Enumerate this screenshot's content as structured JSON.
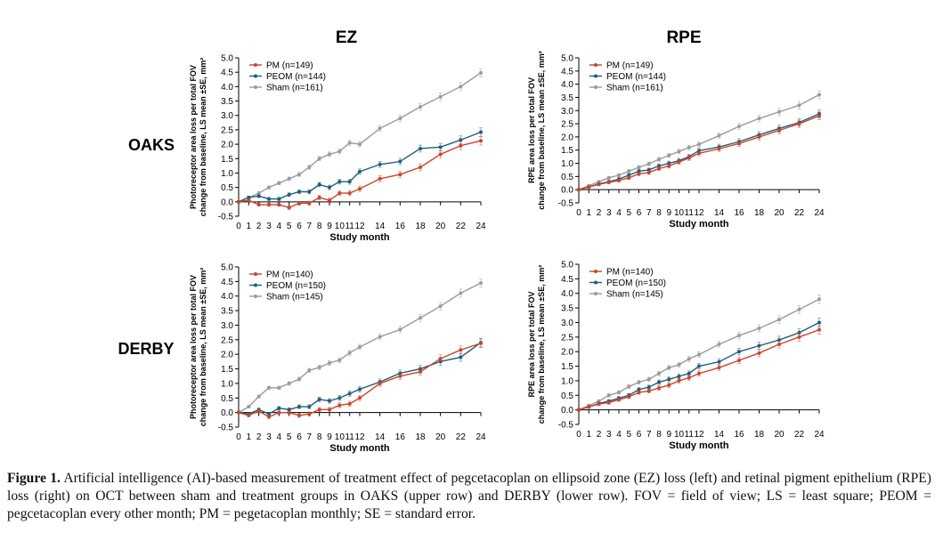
{
  "column_titles": {
    "left": "EZ",
    "right": "RPE"
  },
  "row_titles": {
    "top": "OAKS",
    "bottom": "DERBY"
  },
  "caption": {
    "label": "Figure 1.",
    "text": "Artificial intelligence (AI)-based measurement of treatment effect of pegcetacoplan on ellipsoid zone (EZ) loss (left) and retinal pigment epithelium (RPE) loss (right) on OCT between sham and treatment groups in OAKS (upper row) and DERBY (lower row). FOV = field of view; LS = least square; PEOM = pegcetacoplan every other month; PM = pegetacoplan monthly; SE = standard error."
  },
  "colors": {
    "PM": "#c8452b",
    "PEOM": "#1f5e7a",
    "Sham": "#9b9b9b"
  },
  "chart_data": [
    {
      "type": "line",
      "panel": "OAKS-EZ",
      "ylabel_line1": "Photoreceptor area loss per total FOV",
      "ylabel_line2": "change from baseline, LS mean ±SE, mm²",
      "xlabel": "Study month",
      "ylim": [
        -0.5,
        5.0
      ],
      "yticks": [
        "5.0",
        "4.5",
        "4.0",
        "3.5",
        "3.0",
        "2.5",
        "2.0",
        "1.5",
        "1.0",
        "0.5",
        "0.0",
        "-0.5"
      ],
      "xticks": [
        "0",
        "1",
        "2",
        "3",
        "4",
        "5",
        "6",
        "7",
        "8",
        "9",
        "10",
        "11",
        "12",
        "14",
        "16",
        "18",
        "20",
        "22",
        "24"
      ],
      "x": [
        0,
        1,
        2,
        3,
        4,
        5,
        6,
        7,
        8,
        9,
        10,
        11,
        12,
        14,
        16,
        18,
        20,
        22,
        24
      ],
      "legend_position": "top-left",
      "series": [
        {
          "name": "PM (n=149)",
          "key": "PM",
          "values": [
            0,
            0.05,
            -0.1,
            -0.1,
            -0.1,
            -0.2,
            -0.05,
            -0.05,
            0.15,
            0.05,
            0.3,
            0.3,
            0.45,
            0.8,
            0.95,
            1.2,
            1.65,
            1.95,
            2.12
          ]
        },
        {
          "name": "PEOM (n=144)",
          "key": "PEOM",
          "values": [
            0,
            0.15,
            0.2,
            0.1,
            0.1,
            0.25,
            0.35,
            0.35,
            0.6,
            0.5,
            0.7,
            0.7,
            1.05,
            1.3,
            1.4,
            1.85,
            1.9,
            2.15,
            2.42
          ]
        },
        {
          "name": "Sham (n=161)",
          "key": "Sham",
          "values": [
            0,
            0.15,
            0.3,
            0.5,
            0.65,
            0.8,
            0.95,
            1.2,
            1.5,
            1.65,
            1.75,
            2.05,
            2.0,
            2.55,
            2.9,
            3.3,
            3.65,
            4.0,
            4.48
          ]
        }
      ]
    },
    {
      "type": "line",
      "panel": "OAKS-RPE",
      "ylabel_line1": "RPE area loss per total FOV",
      "ylabel_line2": "change from baseline, LS mean ±SE, mm²",
      "xlabel": "Study month",
      "ylim": [
        -0.5,
        5.0
      ],
      "yticks": [
        "5.0",
        "4.5",
        "4.0",
        "3.5",
        "3.0",
        "2.5",
        "2.0",
        "1.5",
        "1.0",
        "0.5",
        "0.0",
        "-0.5"
      ],
      "xticks": [
        "0",
        "1",
        "2",
        "3",
        "4",
        "5",
        "6",
        "7",
        "8",
        "9",
        "10",
        "11",
        "12",
        "14",
        "16",
        "18",
        "20",
        "22",
        "24"
      ],
      "x": [
        0,
        1,
        2,
        3,
        4,
        5,
        6,
        7,
        8,
        9,
        10,
        11,
        12,
        14,
        16,
        18,
        20,
        22,
        24
      ],
      "legend_position": "top-left",
      "series": [
        {
          "name": "PM (n=149)",
          "key": "PM",
          "values": [
            0,
            0.1,
            0.2,
            0.28,
            0.35,
            0.45,
            0.6,
            0.65,
            0.8,
            0.9,
            1.05,
            1.2,
            1.38,
            1.55,
            1.75,
            2.0,
            2.25,
            2.5,
            2.8
          ]
        },
        {
          "name": "PEOM (n=144)",
          "key": "PEOM",
          "values": [
            0,
            0.1,
            0.22,
            0.3,
            0.4,
            0.55,
            0.7,
            0.75,
            0.9,
            1.0,
            1.1,
            1.25,
            1.48,
            1.62,
            1.82,
            2.08,
            2.32,
            2.55,
            2.88
          ]
        },
        {
          "name": "Sham (n=161)",
          "key": "Sham",
          "values": [
            0,
            0.15,
            0.3,
            0.45,
            0.55,
            0.7,
            0.85,
            0.98,
            1.15,
            1.3,
            1.45,
            1.6,
            1.72,
            2.05,
            2.4,
            2.7,
            2.95,
            3.2,
            3.6
          ]
        }
      ]
    },
    {
      "type": "line",
      "panel": "DERBY-EZ",
      "ylabel_line1": "Photoreceptor area loss per total FOV",
      "ylabel_line2": "change from baseline, LS mean ±SE, mm²",
      "xlabel": "Study month",
      "ylim": [
        -0.5,
        5.0
      ],
      "yticks": [
        "5.0",
        "4.5",
        "4.0",
        "3.5",
        "3.0",
        "2.5",
        "2.0",
        "1.5",
        "1.0",
        "0.5",
        "0.0",
        "-0.5"
      ],
      "xticks": [
        "0",
        "1",
        "2",
        "3",
        "4",
        "5",
        "6",
        "7",
        "8",
        "9",
        "10",
        "11",
        "12",
        "14",
        "16",
        "18",
        "20",
        "22",
        "24"
      ],
      "x": [
        0,
        1,
        2,
        3,
        4,
        5,
        6,
        7,
        8,
        9,
        10,
        11,
        12,
        14,
        16,
        18,
        20,
        22,
        24
      ],
      "legend_position": "top-left",
      "series": [
        {
          "name": "PM (n=140)",
          "key": "PM",
          "values": [
            0,
            -0.1,
            0.05,
            -0.15,
            0.0,
            0.0,
            -0.1,
            -0.05,
            0.1,
            0.1,
            0.25,
            0.3,
            0.5,
            1.0,
            1.25,
            1.4,
            1.85,
            2.15,
            2.38
          ]
        },
        {
          "name": "PEOM (n=150)",
          "key": "PEOM",
          "values": [
            0,
            -0.05,
            0.1,
            -0.05,
            0.15,
            0.1,
            0.2,
            0.2,
            0.45,
            0.4,
            0.5,
            0.65,
            0.8,
            1.05,
            1.35,
            1.5,
            1.75,
            1.9,
            2.4
          ]
        },
        {
          "name": "Sham (n=145)",
          "key": "Sham",
          "values": [
            0,
            0.2,
            0.55,
            0.85,
            0.85,
            1.0,
            1.15,
            1.45,
            1.55,
            1.7,
            1.8,
            2.05,
            2.25,
            2.6,
            2.85,
            3.25,
            3.65,
            4.1,
            4.45
          ]
        }
      ]
    },
    {
      "type": "line",
      "panel": "DERBY-RPE",
      "ylabel_line1": "RPE area loss per total FOV",
      "ylabel_line2": "change from baseline, LS mean ±SE, mm²",
      "xlabel": "Study month",
      "ylim": [
        -0.5,
        5.0
      ],
      "yticks": [
        "5.0",
        "4.5",
        "4.0",
        "3.5",
        "3.0",
        "2.5",
        "2.0",
        "1.5",
        "1.0",
        "0.5",
        "0.0",
        "-0.5"
      ],
      "xticks": [
        "0",
        "1",
        "2",
        "3",
        "4",
        "5",
        "6",
        "7",
        "8",
        "9",
        "10",
        "11",
        "12",
        "14",
        "16",
        "18",
        "20",
        "22",
        "24"
      ],
      "x": [
        0,
        1,
        2,
        3,
        4,
        5,
        6,
        7,
        8,
        9,
        10,
        11,
        12,
        14,
        16,
        18,
        20,
        22,
        24
      ],
      "legend_position": "top-left",
      "series": [
        {
          "name": "PM (n=140)",
          "key": "PM",
          "values": [
            0,
            0.1,
            0.2,
            0.25,
            0.35,
            0.45,
            0.6,
            0.65,
            0.75,
            0.85,
            1.0,
            1.1,
            1.25,
            1.45,
            1.7,
            1.95,
            2.25,
            2.5,
            2.75
          ]
        },
        {
          "name": "PEOM (n=150)",
          "key": "PEOM",
          "values": [
            0,
            0.1,
            0.22,
            0.3,
            0.4,
            0.5,
            0.7,
            0.78,
            0.95,
            1.05,
            1.15,
            1.25,
            1.5,
            1.65,
            2.0,
            2.2,
            2.4,
            2.65,
            3.0
          ]
        },
        {
          "name": "Sham (n=145)",
          "key": "Sham",
          "values": [
            0,
            0.15,
            0.3,
            0.5,
            0.6,
            0.8,
            0.95,
            1.05,
            1.25,
            1.45,
            1.55,
            1.75,
            1.9,
            2.25,
            2.55,
            2.8,
            3.1,
            3.45,
            3.8
          ]
        }
      ]
    }
  ]
}
